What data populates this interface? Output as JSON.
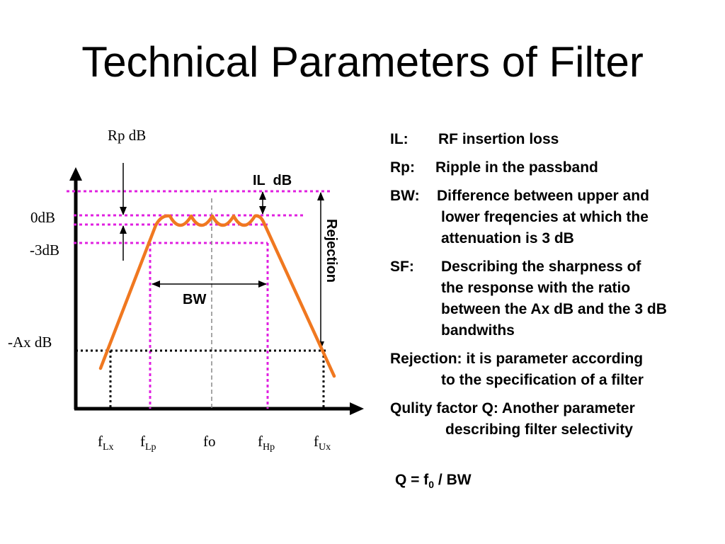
{
  "title": "Technical Parameters of Filter",
  "diagram": {
    "left_labels": {
      "rp_db": "Rp dB",
      "zero_db": "0dB",
      "minus3_db": "-3dB",
      "minus_ax_db": "-Ax dB"
    },
    "il_db": "IL  dB",
    "bw": "BW",
    "rejection": "Rejection",
    "freq_labels": [
      {
        "base": "f",
        "sub": "Lx"
      },
      {
        "base": "f",
        "sub": "Lp"
      },
      {
        "base": "fo",
        "sub": ""
      },
      {
        "base": "f",
        "sub": "Hp"
      },
      {
        "base": "f",
        "sub": "Ux"
      }
    ],
    "colors": {
      "response_curve": "#F07820",
      "guide_lines": "#E020E0",
      "axes": "#000000"
    }
  },
  "definitions": {
    "il": {
      "term": "IL:",
      "text": "RF insertion loss"
    },
    "rp": {
      "term": "Rp:",
      "text": "Ripple in the passband"
    },
    "bw": {
      "term": "BW:",
      "lines": [
        "Difference between upper and",
        "lower freqencies at which the",
        "attenuation is 3 dB"
      ]
    },
    "sf": {
      "term": "SF:",
      "lines": [
        "Describing the sharpness of",
        "the response with the ratio",
        "between the Ax dB and the 3 dB",
        "bandwiths"
      ]
    },
    "rejection": {
      "lines": [
        "Rejection: it is parameter according",
        "to the specification of a filter"
      ]
    },
    "q": {
      "lines": [
        "Qulity factor Q: Another parameter",
        "describing filter selectivity"
      ]
    }
  },
  "formula": {
    "prefix": "Q = f",
    "sub": "0",
    "suffix": " / BW"
  }
}
